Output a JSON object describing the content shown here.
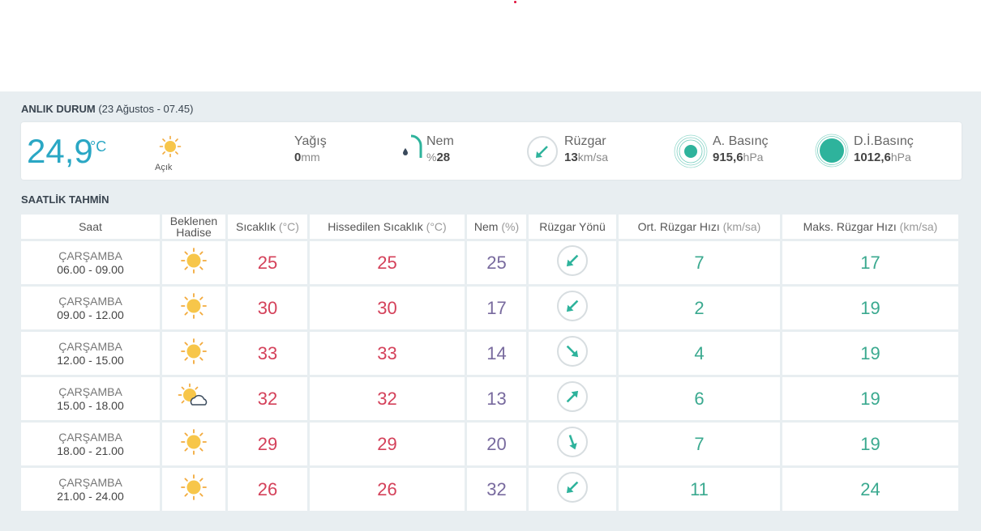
{
  "current": {
    "section_title": "ANLIK DURUM",
    "section_date": "(23 Ağustos - 07.45)",
    "temperature": "24,9",
    "temp_unit": "°C",
    "condition_icon": "sun-icon",
    "condition": "Açık",
    "precipitation": {
      "label": "Yağış",
      "value": "0",
      "unit": "mm"
    },
    "humidity": {
      "label": "Nem",
      "prefix": "%",
      "value": "28",
      "icon": "humidity-gauge-icon"
    },
    "wind": {
      "label": "Rüzgar",
      "value": "13",
      "unit": "km/sa",
      "icon": "wind-direction-icon"
    },
    "pressure": {
      "label": "A. Basınç",
      "value": "915,6",
      "unit": "hPa",
      "icon": "pressure-icon"
    },
    "sea_pressure": {
      "label": "D.İ.Basınç",
      "value": "1012,6",
      "unit": "hPa",
      "icon": "sea-pressure-icon"
    },
    "colors": {
      "accent": "#2aa7c4",
      "teal": "#2eb39c"
    }
  },
  "forecast": {
    "section_title": "SAATLİK TAHMİN",
    "headers": {
      "saat": "Saat",
      "hadise_1": "Beklenen",
      "hadise_2": "Hadise",
      "sicaklik": "Sıcaklık",
      "sicaklik_unit": "(°C)",
      "hissedilen": "Hissedilen Sıcaklık",
      "hissedilen_unit": "(°C)",
      "nem": "Nem",
      "nem_unit": "(%)",
      "yon": "Rüzgar Yönü",
      "ort": "Ort. Rüzgar Hızı",
      "ort_unit": "(km/sa)",
      "maks": "Maks. Rüzgar Hızı",
      "maks_unit": "(km/sa)"
    },
    "rows": [
      {
        "day": "ÇARŞAMBA",
        "range": "06.00 - 09.00",
        "icon": "sun-icon",
        "temp": "25",
        "feels": "25",
        "humidity": "25",
        "wind_dir": "arrow-down-left-icon",
        "avg": "7",
        "max": "17"
      },
      {
        "day": "ÇARŞAMBA",
        "range": "09.00 - 12.00",
        "icon": "sun-icon",
        "temp": "30",
        "feels": "30",
        "humidity": "17",
        "wind_dir": "arrow-down-left-icon",
        "avg": "2",
        "max": "19"
      },
      {
        "day": "ÇARŞAMBA",
        "range": "12.00 - 15.00",
        "icon": "sun-icon",
        "temp": "33",
        "feels": "33",
        "humidity": "14",
        "wind_dir": "arrow-down-right-icon",
        "avg": "4",
        "max": "19"
      },
      {
        "day": "ÇARŞAMBA",
        "range": "15.00 - 18.00",
        "icon": "partly-cloudy-icon",
        "temp": "32",
        "feels": "32",
        "humidity": "13",
        "wind_dir": "arrow-up-right-icon",
        "avg": "6",
        "max": "19"
      },
      {
        "day": "ÇARŞAMBA",
        "range": "18.00 - 21.00",
        "icon": "sun-icon",
        "temp": "29",
        "feels": "29",
        "humidity": "20",
        "wind_dir": "arrow-down-icon",
        "avg": "7",
        "max": "19"
      },
      {
        "day": "ÇARŞAMBA",
        "range": "21.00 - 24.00",
        "icon": "sun-icon",
        "temp": "26",
        "feels": "26",
        "humidity": "32",
        "wind_dir": "arrow-down-left-icon",
        "avg": "11",
        "max": "24"
      }
    ],
    "colors": {
      "temp": "#d4415a",
      "humidity": "#786a9e",
      "wind": "#3aa98f"
    }
  }
}
